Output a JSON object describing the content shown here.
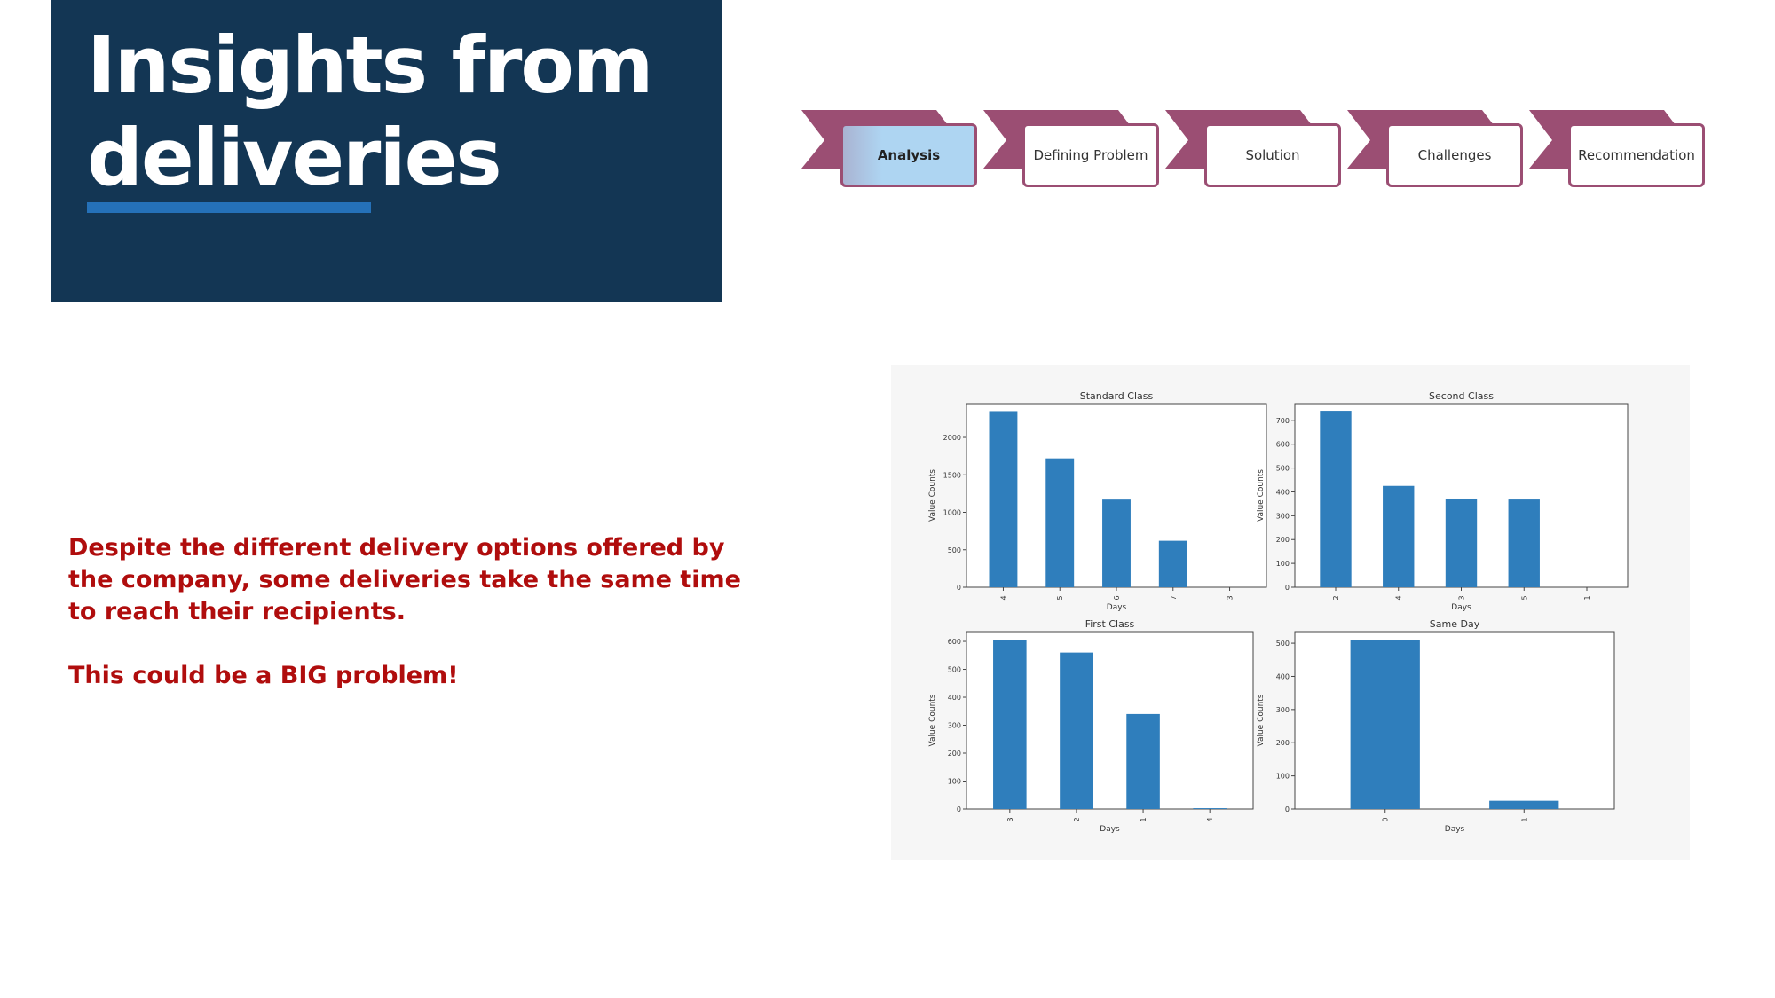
{
  "header": {
    "title_line1": "Insights from",
    "title_line2": "deliveries"
  },
  "process": {
    "steps": [
      {
        "label": "Analysis",
        "active": true
      },
      {
        "label": "Defining Problem",
        "active": false
      },
      {
        "label": "Solution",
        "active": false
      },
      {
        "label": "Challenges",
        "active": false
      },
      {
        "label": "Recommendation",
        "active": false
      }
    ]
  },
  "message": {
    "paragraph1": "Despite the different delivery options offered by the company, some deliveries take the same time to reach their recipients.",
    "paragraph2": "This could be a BIG problem!"
  },
  "colors": {
    "title_bg": "#133654",
    "accent_underline": "#2571b8",
    "process_arrow": "#9b4e73",
    "active_step_bg": "#aed5f2",
    "message_text": "#b00d0d",
    "bar": "#2f7ebc"
  },
  "chart_data": [
    {
      "type": "bar",
      "title": "Standard Class",
      "xlabel": "Days",
      "ylabel": "Value Counts",
      "categories": [
        "4",
        "5",
        "6",
        "7",
        "3"
      ],
      "values": [
        2350,
        1720,
        1170,
        620,
        0
      ],
      "yticks": [
        0,
        500,
        1000,
        1500,
        2000
      ],
      "ylim": [
        0,
        2450
      ]
    },
    {
      "type": "bar",
      "title": "Second Class",
      "xlabel": "Days",
      "ylabel": "Value Counts",
      "categories": [
        "2",
        "4",
        "3",
        "5",
        "1"
      ],
      "values": [
        740,
        425,
        372,
        368,
        0
      ],
      "yticks": [
        0,
        100,
        200,
        300,
        400,
        500,
        600,
        700
      ],
      "ylim": [
        0,
        770
      ]
    },
    {
      "type": "bar",
      "title": "First Class",
      "xlabel": "Days",
      "ylabel": "Value Counts",
      "categories": [
        "3",
        "2",
        "1",
        "4"
      ],
      "values": [
        605,
        560,
        340,
        3
      ],
      "yticks": [
        0,
        100,
        200,
        300,
        400,
        500,
        600
      ],
      "ylim": [
        0,
        635
      ]
    },
    {
      "type": "bar",
      "title": "Same Day",
      "xlabel": "Days",
      "ylabel": "Value Counts",
      "categories": [
        "0",
        "1"
      ],
      "values": [
        510,
        25
      ],
      "yticks": [
        0,
        100,
        200,
        300,
        400,
        500
      ],
      "ylim": [
        0,
        535
      ]
    }
  ]
}
